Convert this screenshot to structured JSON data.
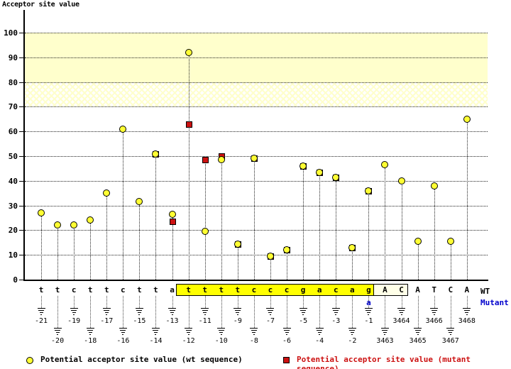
{
  "colors": {
    "wt_marker": "#ffff33",
    "mutant_marker": "#cc1111",
    "scoring_band": "#ffffcc",
    "intron_highlight": "#ffff00",
    "exon_box_fill": "#ffffe8",
    "mutant_text": "#0000cc",
    "legend_mutant_text": "#cc1111"
  },
  "chart_data": {
    "type": "scatter",
    "title": "Acceptor site value",
    "ylim": [
      0,
      100
    ],
    "ytick_step": 10,
    "grid": "dotted horizontal",
    "bands": [
      {
        "from": 80,
        "to": 100,
        "style": "solid"
      },
      {
        "from": 70,
        "to": 80,
        "style": "hatch"
      }
    ],
    "series": [
      {
        "name": "Potential acceptor site value (wt sequence)",
        "marker": "circle",
        "color": "#ffff33"
      },
      {
        "name": "Potential acceptor site value (mutant sequence)",
        "marker": "square",
        "color": "#cc1111"
      }
    ],
    "points": [
      {
        "pos": "-21",
        "base": "t",
        "wt": 27,
        "mut": null
      },
      {
        "pos": "-20",
        "base": "t",
        "wt": 22,
        "mut": null
      },
      {
        "pos": "-19",
        "base": "c",
        "wt": 22,
        "mut": null
      },
      {
        "pos": "-18",
        "base": "t",
        "wt": 24,
        "mut": null
      },
      {
        "pos": "-17",
        "base": "t",
        "wt": 35,
        "mut": null
      },
      {
        "pos": "-16",
        "base": "c",
        "wt": 61,
        "mut": null
      },
      {
        "pos": "-15",
        "base": "t",
        "wt": 31.5,
        "mut": null
      },
      {
        "pos": "-14",
        "base": "t",
        "wt": 51,
        "mut": 51
      },
      {
        "pos": "-13",
        "base": "a",
        "wt": 26.5,
        "mut": 23.5
      },
      {
        "pos": "-12",
        "base": "t",
        "wt": 92,
        "mut": 63
      },
      {
        "pos": "-11",
        "base": "t",
        "wt": 19.5,
        "mut": 48.5
      },
      {
        "pos": "-10",
        "base": "t",
        "wt": 48.5,
        "mut": 50
      },
      {
        "pos": "-9",
        "base": "t",
        "wt": 14.5,
        "mut": 14.5
      },
      {
        "pos": "-8",
        "base": "c",
        "wt": 49,
        "mut": 49
      },
      {
        "pos": "-7",
        "base": "c",
        "wt": 9.5,
        "mut": 9.5
      },
      {
        "pos": "-6",
        "base": "c",
        "wt": 12,
        "mut": 12
      },
      {
        "pos": "-5",
        "base": "g",
        "wt": 46,
        "mut": 46
      },
      {
        "pos": "-4",
        "base": "a",
        "wt": 43.5,
        "mut": 43.5
      },
      {
        "pos": "-3",
        "base": "c",
        "wt": 41.5,
        "mut": 41.5
      },
      {
        "pos": "-2",
        "base": "a",
        "wt": 13,
        "mut": 13
      },
      {
        "pos": "-1",
        "base": "g",
        "wt": 36,
        "mut": 36
      },
      {
        "pos": "3463",
        "base": "A",
        "wt": 46.5,
        "mut": null
      },
      {
        "pos": "3464",
        "base": "C",
        "wt": 40,
        "mut": null
      },
      {
        "pos": "3465",
        "base": "A",
        "wt": 15.5,
        "mut": null
      },
      {
        "pos": "3466",
        "base": "T",
        "wt": 38,
        "mut": null
      },
      {
        "pos": "3467",
        "base": "C",
        "wt": 15.5,
        "mut": null
      },
      {
        "pos": "3468",
        "base": "A",
        "wt": 65,
        "mut": null
      }
    ],
    "highlight_intron": {
      "from_pos": "-12",
      "to_pos": "-1"
    },
    "highlight_exon": {
      "from_pos": "3463",
      "to_pos": "3464"
    },
    "mutant_base": {
      "pos": "-1",
      "base": "a"
    },
    "row_labels": {
      "wt": "WT",
      "mutant": "Mutant"
    }
  }
}
